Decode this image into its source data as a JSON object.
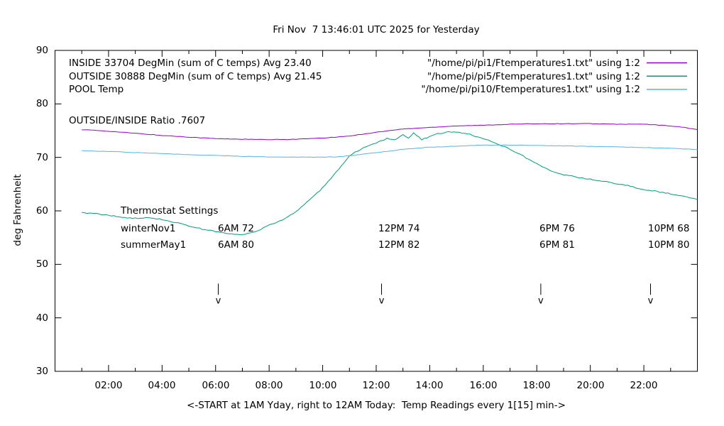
{
  "title": "Fri Nov  7 13:46:01 UTC 2025 for Yesterday",
  "axes": {
    "ylabel": "deg Fahrenheit",
    "xlabel": "<-START at 1AM Yday, right to 12AM Today:  Temp Readings every 1[15] min->",
    "y_ticks": [
      30,
      40,
      50,
      60,
      70,
      80,
      90
    ],
    "x_tick_labels": [
      "02:00",
      "04:00",
      "06:00",
      "08:00",
      "10:00",
      "12:00",
      "14:00",
      "16:00",
      "18:00",
      "20:00",
      "22:00"
    ],
    "x_tick_hours": [
      2,
      4,
      6,
      8,
      10,
      12,
      14,
      16,
      18,
      20,
      22
    ]
  },
  "legend": {
    "rows": [
      {
        "label": "INSIDE 33704 DegMin (sum of C temps) Avg 23.40",
        "file": "\"/home/pi/pi1/Ftemperatures1.txt\" using 1:2",
        "color": "#9400d3"
      },
      {
        "label": "OUTSIDE 30888 DegMin (sum of C temps) Avg 21.45",
        "file": "\"/home/pi/pi5/Ftemperatures1.txt\" using 1:2",
        "color": "#009e73"
      },
      {
        "label": "POOL Temp",
        "file": "\"/home/pi/pi10/Ftemperatures1.txt\" using 1:2",
        "color": "#56b4e9"
      }
    ]
  },
  "annotations": {
    "ratio": "OUTSIDE/INSIDE Ratio .7607",
    "thermostat": {
      "heading": "Thermostat Settings",
      "rows": [
        {
          "name": "winterNov1",
          "settings": [
            "6AM 72",
            "12PM 74",
            "6PM 76",
            "10PM 68"
          ]
        },
        {
          "name": "summerMay1",
          "settings": [
            "6AM 80",
            "12PM 82",
            "6PM 81",
            "10PM 80"
          ]
        }
      ]
    },
    "arrow_marker_hours": [
      6.1,
      12.2,
      18.15,
      22.25
    ],
    "arrow_top_f": 46.4,
    "arrow_bottom_f": 44.3,
    "arrow_glyph": "v"
  },
  "chart_data": {
    "type": "line",
    "title": "Fri Nov  7 13:46:01 UTC 2025 for Yesterday",
    "xlabel": "<-START at 1AM Yday, right to 12AM Today:  Temp Readings every 1[15] min->",
    "ylabel": "deg Fahrenheit",
    "x_unit": "hour of day (1AM yesterday to 12AM today)",
    "xlim": [
      0,
      24
    ],
    "ylim": [
      30,
      90
    ],
    "grid": false,
    "legend_position": "top inside",
    "series": [
      {
        "name": "INSIDE",
        "color": "#9400d3",
        "x": [
          1,
          2,
          3,
          4,
          5,
          6,
          7,
          8,
          9,
          10,
          11,
          12,
          13,
          14,
          15,
          16,
          17,
          18,
          19,
          20,
          21,
          22,
          23,
          23.5,
          24
        ],
        "y": [
          75.2,
          74.9,
          74.5,
          74.1,
          73.8,
          73.5,
          73.4,
          73.3,
          73.4,
          73.6,
          74.0,
          74.7,
          75.3,
          75.6,
          75.9,
          76.0,
          76.2,
          76.3,
          76.3,
          76.3,
          76.2,
          76.2,
          75.9,
          75.6,
          75.2
        ]
      },
      {
        "name": "OUTSIDE",
        "color": "#009e73",
        "x": [
          1,
          1.5,
          2,
          2.5,
          3,
          3.5,
          4,
          4.5,
          5,
          5.5,
          6,
          6.5,
          7,
          7.5,
          8,
          8.5,
          9,
          9.5,
          10,
          10.5,
          11,
          11.3,
          11.6,
          12,
          12.4,
          12.7,
          13,
          13.2,
          13.4,
          13.7,
          14,
          14.3,
          14.7,
          15,
          15.5,
          16,
          16.5,
          17,
          17.5,
          18,
          18.5,
          19,
          19.5,
          20,
          20.5,
          21,
          21.5,
          22,
          22.5,
          23,
          23.5,
          24
        ],
        "y": [
          59.7,
          59.5,
          59.2,
          58.8,
          58.6,
          58.7,
          58.4,
          57.8,
          57.2,
          56.6,
          56.1,
          55.7,
          55.5,
          56.1,
          57.3,
          58.3,
          59.8,
          62.0,
          64.3,
          67.2,
          70.3,
          71.2,
          71.9,
          72.7,
          73.5,
          73.2,
          74.2,
          73.5,
          74.6,
          73.3,
          73.9,
          74.4,
          74.8,
          74.7,
          74.3,
          73.5,
          72.6,
          71.5,
          70.2,
          68.8,
          67.5,
          66.8,
          66.3,
          65.9,
          65.5,
          65.1,
          64.6,
          64.0,
          63.6,
          63.2,
          62.7,
          62.1
        ]
      },
      {
        "name": "POOL",
        "color": "#56b4e9",
        "x": [
          1,
          2,
          3,
          4,
          5,
          6,
          7,
          8,
          9,
          10,
          10.5,
          11,
          11.5,
          12,
          12.5,
          13,
          13.5,
          14,
          14.5,
          15,
          16,
          17,
          18,
          19,
          20,
          21,
          22,
          23,
          24
        ],
        "y": [
          71.25,
          71.1,
          70.9,
          70.7,
          70.5,
          70.35,
          70.2,
          70.1,
          70.05,
          70.05,
          70.1,
          70.3,
          70.6,
          70.9,
          71.2,
          71.5,
          71.7,
          71.9,
          72.0,
          72.1,
          72.3,
          72.3,
          72.25,
          72.15,
          72.05,
          71.95,
          71.85,
          71.7,
          71.45
        ]
      }
    ]
  }
}
